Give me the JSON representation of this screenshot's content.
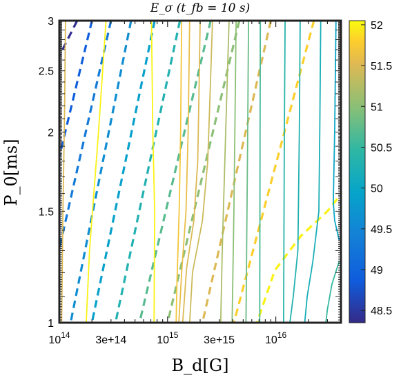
{
  "chart_data": {
    "type": "contour",
    "title": "E_σ (t_fb = 10 s)",
    "xlabel": "B_d[G]",
    "ylabel": "P_0[ms]",
    "x_scale": "log",
    "y_scale": "log",
    "xlim": [
      100000000000000.0,
      4e+16
    ],
    "ylim": [
      1,
      3
    ],
    "x_ticks": [
      {
        "value": 100000000000000.0,
        "label": "10",
        "sup": "14"
      },
      {
        "value": 300000000000000.0,
        "label": "3e+14",
        "sup": ""
      },
      {
        "value": 1000000000000000.0,
        "label": "10",
        "sup": "15"
      },
      {
        "value": 3000000000000000.0,
        "label": "3e+15",
        "sup": ""
      },
      {
        "value": 1e+16,
        "label": "10",
        "sup": "16"
      }
    ],
    "y_ticks": [
      {
        "value": 1,
        "label": "1"
      },
      {
        "value": 1.5,
        "label": "1.5"
      },
      {
        "value": 2,
        "label": "2"
      },
      {
        "value": 2.5,
        "label": "2.5"
      },
      {
        "value": 3,
        "label": "3"
      }
    ],
    "colorbar": {
      "range": [
        48.35,
        52.05
      ],
      "ticks": [
        48.5,
        49,
        49.5,
        50,
        50.5,
        51,
        51.5,
        52
      ]
    },
    "dashed_contours": [
      {
        "level": 48.4,
        "points": [
          [
            146000000000000.0,
            3.0
          ],
          [
            100000000000000.0,
            2.64
          ]
        ]
      },
      {
        "level": 48.9,
        "points": [
          [
            200000000000000.0,
            3.0
          ],
          [
            100000000000000.0,
            1.83
          ]
        ]
      },
      {
        "level": 49.3,
        "points": [
          [
            300000000000000.0,
            3.0
          ],
          [
            100000000000000.0,
            1.31
          ]
        ]
      },
      {
        "level": 49.6,
        "points": [
          [
            460000000000000.0,
            3.0
          ],
          [
            127000000000000.0,
            1.0
          ]
        ]
      },
      {
        "level": 49.9,
        "points": [
          [
            760000000000000.0,
            3.0
          ],
          [
            200000000000000.0,
            1.0
          ]
        ]
      },
      {
        "level": 50.3,
        "points": [
          [
            1300000000000000.0,
            3.0
          ],
          [
            330000000000000.0,
            1.0
          ]
        ]
      },
      {
        "level": 50.7,
        "points": [
          [
            2500000000000000.0,
            3.0
          ],
          [
            550000000000000.0,
            1.0
          ]
        ]
      },
      {
        "level": 51.0,
        "points": [
          [
            4600000000000000.0,
            3.0
          ],
          [
            1000000000000000.0,
            1.0
          ]
        ]
      },
      {
        "level": 51.5,
        "points": [
          [
            9000000000000000.0,
            3.0
          ],
          [
            2100000000000000.0,
            1.0
          ]
        ]
      },
      {
        "level": 51.8,
        "points": [
          [
            2.25e+16,
            3.0
          ],
          [
            4100000000000000.0,
            1.0
          ]
        ]
      },
      {
        "level": 52.0,
        "points": [
          [
            3.7e+16,
            1.57
          ],
          [
            3e+16,
            1.5
          ],
          [
            1.7e+16,
            1.37
          ],
          [
            9800000000000000.0,
            1.21
          ],
          [
            6700000000000000.0,
            1.0
          ]
        ]
      }
    ],
    "solid_contours": [
      {
        "level": 51.5,
        "points": [
          [
            114000000000000.0,
            3.0
          ],
          [
            112000000000000.0,
            2.2
          ],
          [
            108000000000000.0,
            1.5
          ],
          [
            105000000000000.0,
            1.0
          ]
        ]
      },
      {
        "level": 52.0,
        "points": [
          [
            270000000000000.0,
            3.0
          ],
          [
            230000000000000.0,
            2.0
          ],
          [
            190000000000000.0,
            1.3
          ],
          [
            177000000000000.0,
            1.0
          ]
        ]
      },
      {
        "level": 52.0,
        "points": [
          [
            710000000000000.0,
            3.0
          ],
          [
            730000000000000.0,
            2.0
          ],
          [
            760000000000000.0,
            1.5
          ],
          [
            750000000000000.0,
            1.0
          ]
        ]
      },
      {
        "level": 51.7,
        "points": [
          [
            1350000000000000.0,
            3.0
          ],
          [
            1320000000000000.0,
            2.0
          ],
          [
            1280000000000000.0,
            1.5
          ],
          [
            1220000000000000.0,
            1.15
          ],
          [
            1200000000000000.0,
            1.0
          ]
        ]
      },
      {
        "level": 51.6,
        "points": [
          [
            1600000000000000.0,
            3.0
          ],
          [
            1550000000000000.0,
            2.0
          ],
          [
            1480000000000000.0,
            1.5
          ],
          [
            1350000000000000.0,
            1.2
          ],
          [
            1270000000000000.0,
            1.0
          ]
        ]
      },
      {
        "level": 51.5,
        "points": [
          [
            2000000000000000.0,
            3.0
          ],
          [
            1950000000000000.0,
            2.3
          ],
          [
            1900000000000000.0,
            1.8
          ],
          [
            1750000000000000.0,
            1.45
          ],
          [
            1500000000000000.0,
            1.22
          ],
          [
            1380000000000000.0,
            1.0
          ]
        ]
      },
      {
        "level": 51.4,
        "points": [
          [
            2600000000000000.0,
            3.0
          ],
          [
            2450000000000000.0,
            2.2
          ],
          [
            2350000000000000.0,
            1.8
          ],
          [
            2100000000000000.0,
            1.45
          ],
          [
            1700000000000000.0,
            1.2
          ],
          [
            1600000000000000.0,
            1.0
          ]
        ]
      },
      {
        "level": 51.2,
        "points": [
          [
            3700000000000000.0,
            3.0
          ],
          [
            3500000000000000.0,
            2.2
          ],
          [
            3350000000000000.0,
            1.7
          ],
          [
            3200000000000000.0,
            1.3
          ],
          [
            3100000000000000.0,
            1.0
          ]
        ]
      },
      {
        "level": 51.0,
        "points": [
          [
            4300000000000000.0,
            3.0
          ],
          [
            4200000000000000.0,
            2.1
          ],
          [
            4100000000000000.0,
            1.5
          ],
          [
            3950000000000000.0,
            1.0
          ]
        ]
      },
      {
        "level": 50.8,
        "points": [
          [
            5600000000000000.0,
            3.0
          ],
          [
            5500000000000000.0,
            2.0
          ],
          [
            5400000000000000.0,
            1.4
          ],
          [
            5300000000000000.0,
            1.0
          ]
        ]
      },
      {
        "level": 50.6,
        "points": [
          [
            7200000000000000.0,
            3.0
          ],
          [
            7150000000000000.0,
            2.0
          ],
          [
            7100000000000000.0,
            1.0
          ]
        ]
      },
      {
        "level": 50.4,
        "points": [
          [
            1.22e+16,
            3.0
          ],
          [
            1.2e+16,
            2.0
          ],
          [
            1.18e+16,
            1.0
          ]
        ]
      },
      {
        "level": 50.3,
        "points": [
          [
            1.68e+16,
            3.0
          ],
          [
            1.65e+16,
            2.0
          ],
          [
            1.6e+16,
            1.3
          ],
          [
            1.45e+16,
            1.1
          ],
          [
            1.35e+16,
            1.0
          ]
        ]
      },
      {
        "level": 50.2,
        "points": [
          [
            2.6e+16,
            3.0
          ],
          [
            2.55e+16,
            2.0
          ],
          [
            2.5e+16,
            1.5
          ],
          [
            2.2e+16,
            1.25
          ],
          [
            1.95e+16,
            1.1
          ],
          [
            1.85e+16,
            1.0
          ]
        ]
      },
      {
        "level": 50.0,
        "points": [
          [
            3.6e+16,
            3.0
          ],
          [
            3.5e+16,
            2.0
          ],
          [
            3.4e+16,
            1.55
          ],
          [
            3.5e+16,
            1.45
          ],
          [
            3.85e+16,
            1.35
          ]
        ]
      },
      {
        "level": 50.5,
        "points": [
          [
            3.85e+16,
            1.25
          ],
          [
            3.3e+16,
            1.15
          ],
          [
            3e+16,
            1.05
          ],
          [
            2.9e+16,
            1.0
          ]
        ]
      }
    ]
  }
}
